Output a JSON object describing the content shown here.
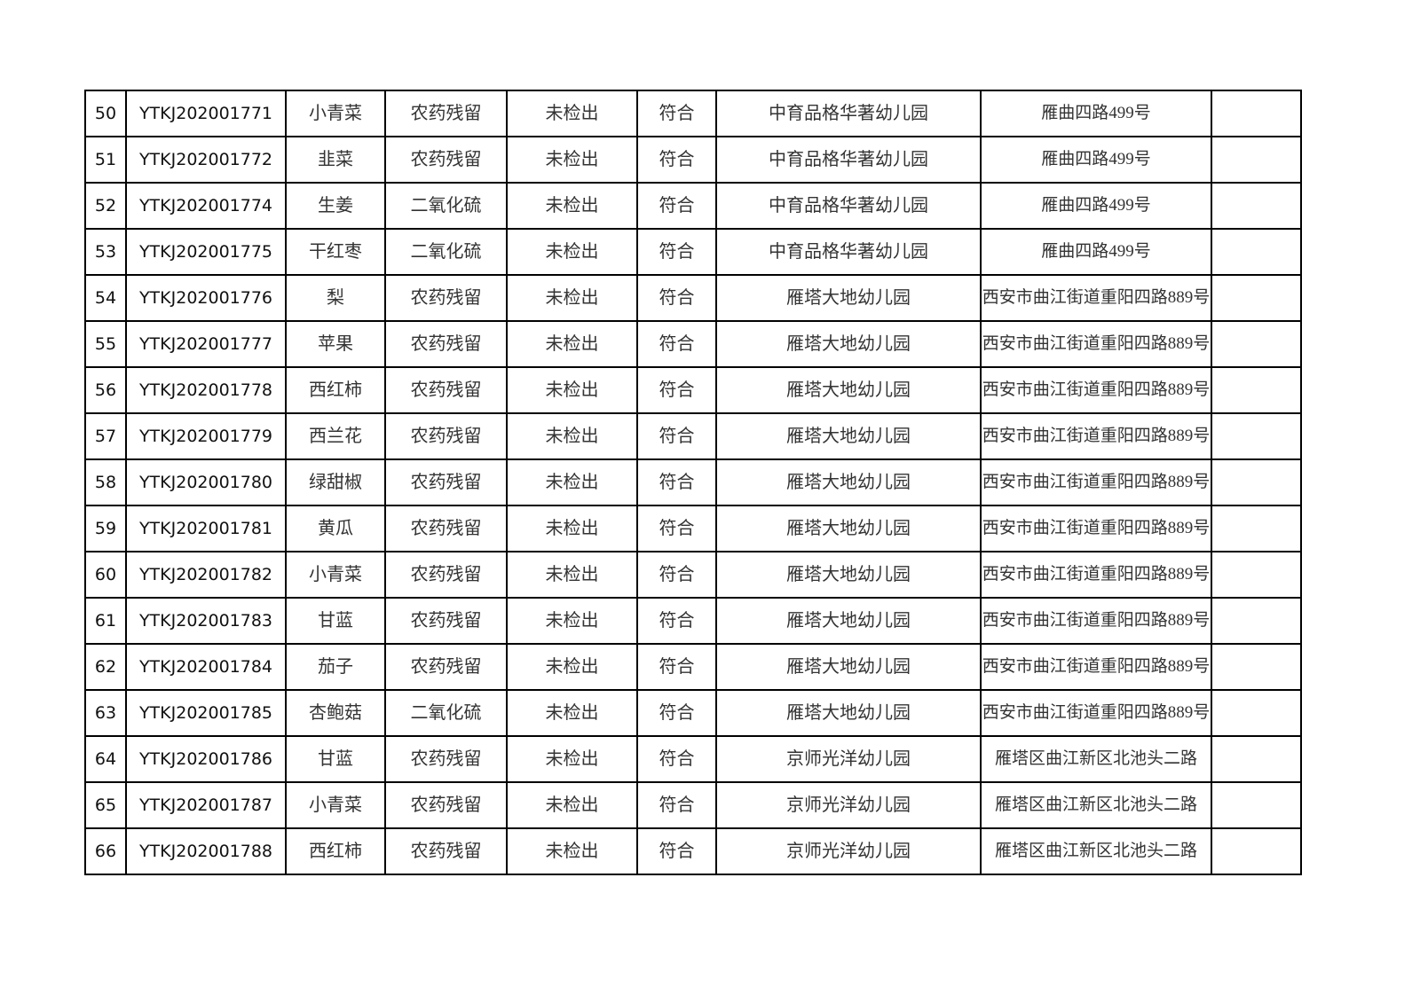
{
  "table": {
    "rows": [
      {
        "no": "50",
        "code": "YTKJ202001771",
        "item": "小青菜",
        "test": "农药残留",
        "result": "未检出",
        "verdict": "符合",
        "unit": "中育品格华著幼儿园",
        "address": "雁曲四路499号",
        "remark": ""
      },
      {
        "no": "51",
        "code": "YTKJ202001772",
        "item": "韭菜",
        "test": "农药残留",
        "result": "未检出",
        "verdict": "符合",
        "unit": "中育品格华著幼儿园",
        "address": "雁曲四路499号",
        "remark": ""
      },
      {
        "no": "52",
        "code": "YTKJ202001774",
        "item": "生姜",
        "test": "二氧化硫",
        "result": "未检出",
        "verdict": "符合",
        "unit": "中育品格华著幼儿园",
        "address": "雁曲四路499号",
        "remark": ""
      },
      {
        "no": "53",
        "code": "YTKJ202001775",
        "item": "干红枣",
        "test": "二氧化硫",
        "result": "未检出",
        "verdict": "符合",
        "unit": "中育品格华著幼儿园",
        "address": "雁曲四路499号",
        "remark": ""
      },
      {
        "no": "54",
        "code": "YTKJ202001776",
        "item": "梨",
        "test": "农药残留",
        "result": "未检出",
        "verdict": "符合",
        "unit": "雁塔大地幼儿园",
        "address": "西安市曲江街道重阳四路889号",
        "remark": ""
      },
      {
        "no": "55",
        "code": "YTKJ202001777",
        "item": "苹果",
        "test": "农药残留",
        "result": "未检出",
        "verdict": "符合",
        "unit": "雁塔大地幼儿园",
        "address": "西安市曲江街道重阳四路889号",
        "remark": ""
      },
      {
        "no": "56",
        "code": "YTKJ202001778",
        "item": "西红柿",
        "test": "农药残留",
        "result": "未检出",
        "verdict": "符合",
        "unit": "雁塔大地幼儿园",
        "address": "西安市曲江街道重阳四路889号",
        "remark": ""
      },
      {
        "no": "57",
        "code": "YTKJ202001779",
        "item": "西兰花",
        "test": "农药残留",
        "result": "未检出",
        "verdict": "符合",
        "unit": "雁塔大地幼儿园",
        "address": "西安市曲江街道重阳四路889号",
        "remark": ""
      },
      {
        "no": "58",
        "code": "YTKJ202001780",
        "item": "绿甜椒",
        "test": "农药残留",
        "result": "未检出",
        "verdict": "符合",
        "unit": "雁塔大地幼儿园",
        "address": "西安市曲江街道重阳四路889号",
        "remark": ""
      },
      {
        "no": "59",
        "code": "YTKJ202001781",
        "item": "黄瓜",
        "test": "农药残留",
        "result": "未检出",
        "verdict": "符合",
        "unit": "雁塔大地幼儿园",
        "address": "西安市曲江街道重阳四路889号",
        "remark": ""
      },
      {
        "no": "60",
        "code": "YTKJ202001782",
        "item": "小青菜",
        "test": "农药残留",
        "result": "未检出",
        "verdict": "符合",
        "unit": "雁塔大地幼儿园",
        "address": "西安市曲江街道重阳四路889号",
        "remark": ""
      },
      {
        "no": "61",
        "code": "YTKJ202001783",
        "item": "甘蓝",
        "test": "农药残留",
        "result": "未检出",
        "verdict": "符合",
        "unit": "雁塔大地幼儿园",
        "address": "西安市曲江街道重阳四路889号",
        "remark": ""
      },
      {
        "no": "62",
        "code": "YTKJ202001784",
        "item": "茄子",
        "test": "农药残留",
        "result": "未检出",
        "verdict": "符合",
        "unit": "雁塔大地幼儿园",
        "address": "西安市曲江街道重阳四路889号",
        "remark": ""
      },
      {
        "no": "63",
        "code": "YTKJ202001785",
        "item": "杏鲍菇",
        "test": "二氧化硫",
        "result": "未检出",
        "verdict": "符合",
        "unit": "雁塔大地幼儿园",
        "address": "西安市曲江街道重阳四路889号",
        "remark": ""
      },
      {
        "no": "64",
        "code": "YTKJ202001786",
        "item": "甘蓝",
        "test": "农药残留",
        "result": "未检出",
        "verdict": "符合",
        "unit": "京师光洋幼儿园",
        "address": "雁塔区曲江新区北池头二路",
        "remark": ""
      },
      {
        "no": "65",
        "code": "YTKJ202001787",
        "item": "小青菜",
        "test": "农药残留",
        "result": "未检出",
        "verdict": "符合",
        "unit": "京师光洋幼儿园",
        "address": "雁塔区曲江新区北池头二路",
        "remark": ""
      },
      {
        "no": "66",
        "code": "YTKJ202001788",
        "item": "西红柿",
        "test": "农药残留",
        "result": "未检出",
        "verdict": "符合",
        "unit": "京师光洋幼儿园",
        "address": "雁塔区曲江新区北池头二路",
        "remark": ""
      }
    ]
  }
}
